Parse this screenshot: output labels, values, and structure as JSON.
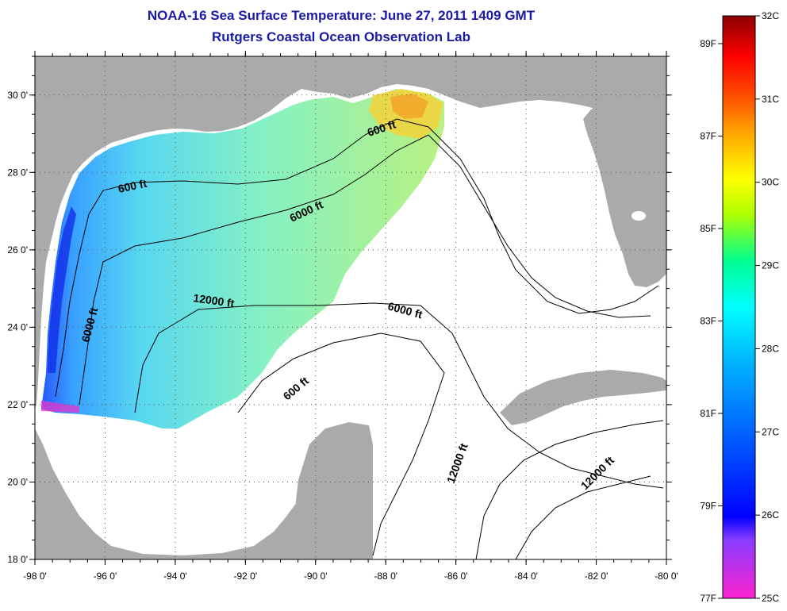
{
  "title": "NOAA-16 Sea Surface Temperature:  June 27, 2011 1409 GMT",
  "subtitle": "Rutgers Coastal Ocean Observation Lab",
  "map": {
    "lon_range": [
      -98,
      -80
    ],
    "lat_range": [
      18,
      31
    ],
    "lon_ticks": [
      "-98 0'",
      "-96 0'",
      "-94 0'",
      "-92 0'",
      "-90 0'",
      "-88 0'",
      "-86 0'",
      "-84 0'",
      "-82 0'",
      "-80 0'"
    ],
    "lat_ticks": [
      "18 0'",
      "20 0'",
      "22 0'",
      "24 0'",
      "26 0'",
      "28 0'",
      "30 0'"
    ],
    "grid": "dotted",
    "land_color": "#aaaaaa",
    "no_data_color": "#ffffff",
    "isobath_labels": [
      "600 ft",
      "600 ft",
      "600 ft",
      "6000 ft",
      "6000 ft",
      "6000 ft",
      "12000 ft",
      "12000 ft",
      "12000 ft"
    ]
  },
  "colorbar": {
    "celsius_labels": [
      "32C",
      "31C",
      "30C",
      "29C",
      "28C",
      "27C",
      "26C",
      "25C"
    ],
    "fahrenheit_labels": [
      "89F",
      "87F",
      "85F",
      "83F",
      "81F",
      "79F",
      "77F"
    ],
    "colors": [
      "#ff22d0",
      "#8a3cff",
      "#0000ff",
      "#0060ff",
      "#00b0ff",
      "#00ffff",
      "#00ff90",
      "#b0ff00",
      "#ffff00",
      "#ffa500",
      "#ff5000",
      "#ff0000",
      "#8b0000"
    ]
  }
}
